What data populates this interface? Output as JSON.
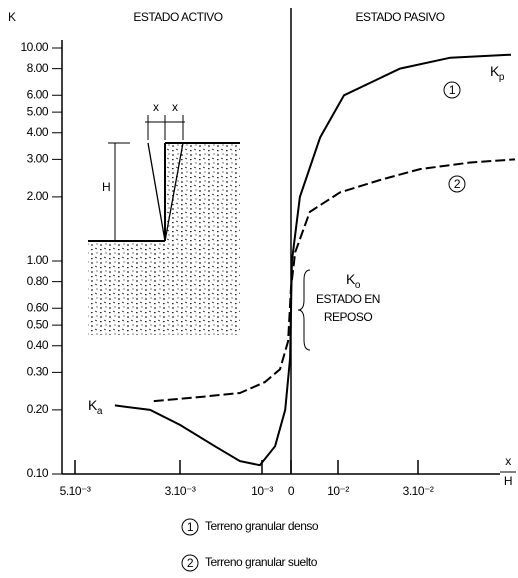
{
  "chart_data": {
    "type": "line",
    "y_label": "K",
    "x_label": {
      "num": "x",
      "den": "H"
    },
    "region_labels": [
      "ESTADO ACTIVO",
      "ESTADO PASIVO"
    ],
    "yscale": "log",
    "ylim": [
      0.1,
      10
    ],
    "yticks": [
      {
        "value": 10,
        "label": "10.00"
      },
      {
        "value": 8,
        "label": "8.00"
      },
      {
        "value": 6,
        "label": "6.00"
      },
      {
        "value": 5,
        "label": "5.00"
      },
      {
        "value": 4,
        "label": "4.00"
      },
      {
        "value": 3,
        "label": "3.00"
      },
      {
        "value": 2,
        "label": "2.00"
      },
      {
        "value": 1,
        "label": "1.00"
      },
      {
        "value": 0.8,
        "label": "0.80"
      },
      {
        "value": 0.6,
        "label": "0.60"
      },
      {
        "value": 0.5,
        "label": "0.50"
      },
      {
        "value": 0.4,
        "label": "0.40"
      },
      {
        "value": 0.3,
        "label": "0.30"
      },
      {
        "value": 0.2,
        "label": "0.20"
      },
      {
        "value": 0.1,
        "label": "0.10"
      }
    ],
    "xlim": [
      -0.0053,
      0.054
    ],
    "xticks": [
      {
        "value": -0.005,
        "label": "5.10⁻³"
      },
      {
        "value": -0.003,
        "label": "3.10⁻³"
      },
      {
        "value": -0.001,
        "label": "10⁻³"
      },
      0,
      {
        "value": 0.01,
        "label": "10⁻²"
      },
      {
        "value": 0.03,
        "label": "3.10⁻²"
      }
    ],
    "series": [
      {
        "name": "Terreno granular denso",
        "marker": "1",
        "color": "#000000",
        "line_style": "solid",
        "x": [
          -0.00424,
          -0.00357,
          -0.003,
          -0.00215,
          -0.00154,
          -0.00105,
          -0.00055,
          -0.0002,
          -3e-05,
          0.0002,
          0.0019,
          0.0062,
          0.0115,
          0.0255,
          0.038,
          0.053
        ],
        "values": [
          0.21,
          0.2,
          0.17,
          0.135,
          0.115,
          0.11,
          0.135,
          0.2,
          0.35,
          1.0,
          2.0,
          3.8,
          6.0,
          8.0,
          9.0,
          9.3
        ]
      },
      {
        "name": "Terreno granular suelto",
        "marker": "2",
        "color": "#000000",
        "line_style": "dashed",
        "x": [
          -0.0035,
          -0.00251,
          -0.00154,
          -0.0009,
          -0.00038,
          -0.0001,
          0,
          0.0009,
          0.004,
          0.0105,
          0.0205,
          0.0305,
          0.043,
          0.054
        ],
        "values": [
          0.22,
          0.23,
          0.24,
          0.27,
          0.31,
          0.42,
          0.75,
          1.1,
          1.7,
          2.1,
          2.4,
          2.7,
          2.9,
          3.0
        ]
      }
    ],
    "annotations": {
      "ka": {
        "main": "K",
        "sub": "a"
      },
      "kp": {
        "main": "K",
        "sub": "p"
      },
      "ko": {
        "main": "K",
        "sub": "o",
        "lines": [
          "ESTADO EN",
          "REPOSO"
        ]
      },
      "inset": {
        "x_left": "x",
        "x_right": "x",
        "height": "H"
      }
    }
  }
}
